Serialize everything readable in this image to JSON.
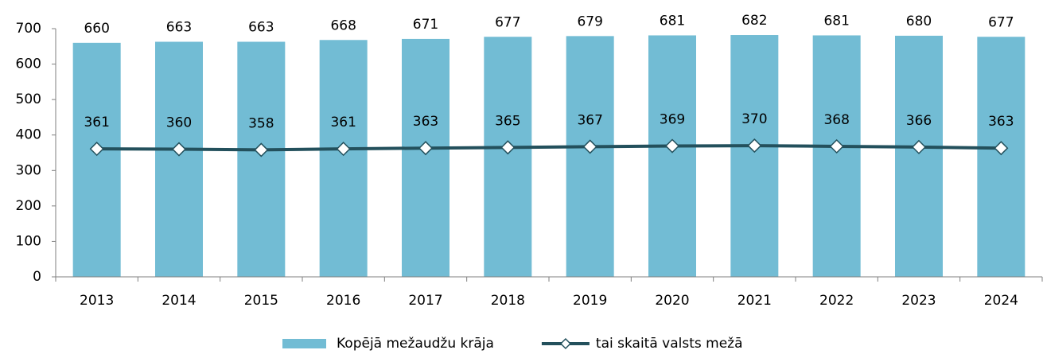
{
  "chart_data": {
    "type": "bar",
    "categories": [
      "2013",
      "2014",
      "2015",
      "2016",
      "2017",
      "2018",
      "2019",
      "2020",
      "2021",
      "2022",
      "2023",
      "2024"
    ],
    "series": [
      {
        "name": "Kopējā mežaudžu krāja",
        "type": "bar",
        "color": "#72bcd4",
        "values": [
          660,
          663,
          663,
          668,
          671,
          677,
          679,
          681,
          682,
          681,
          680,
          677
        ]
      },
      {
        "name": "tai skaitā valsts mežā",
        "type": "line",
        "color": "#23505c",
        "values": [
          361,
          360,
          358,
          361,
          363,
          365,
          367,
          369,
          370,
          368,
          366,
          363
        ]
      }
    ],
    "ylim": [
      0,
      700
    ],
    "yticks": [
      0,
      100,
      200,
      300,
      400,
      500,
      600,
      700
    ],
    "grid": false,
    "legend": "bottom"
  }
}
